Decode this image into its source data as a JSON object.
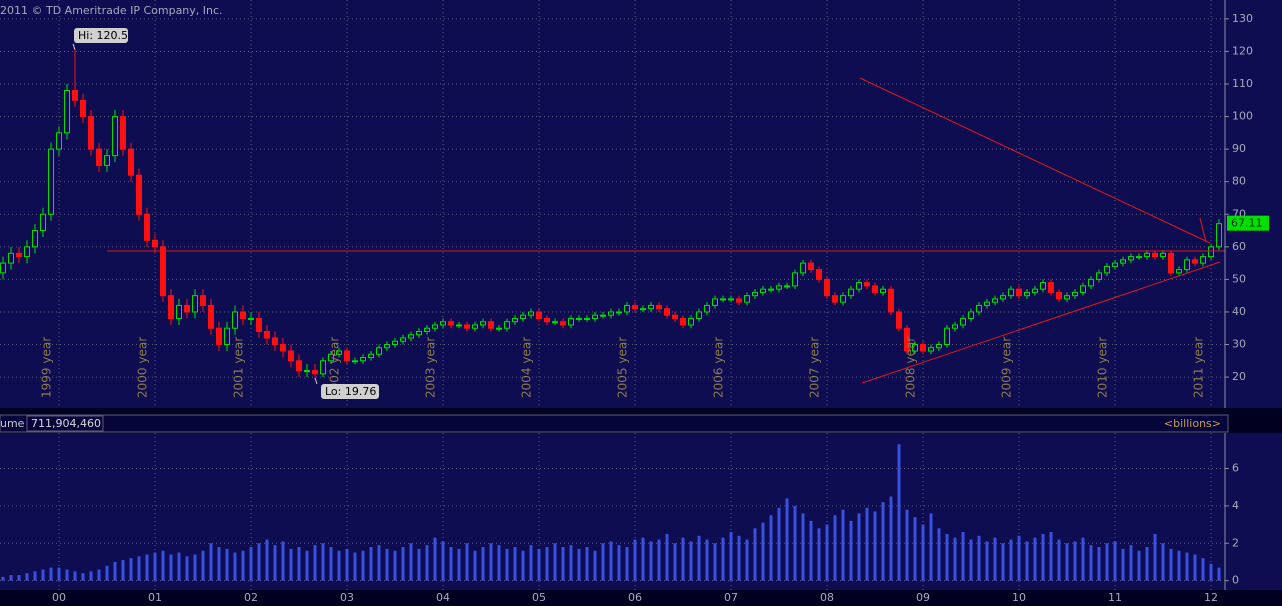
{
  "chart_data": {
    "type": "candlestick",
    "copyright": "2011 © TD Ameritrade IP Company, Inc.",
    "hi_label": "Hi: 120.5",
    "lo_label": "Lo: 19.76",
    "volume_title": "ume",
    "volume_value": "711,904,460",
    "volume_unit": "<billions>",
    "up_color": "#00e000",
    "down_color": "#ff1010",
    "volume_color": "#3a50e0",
    "grid": true,
    "open": [
      52,
      55,
      58,
      57,
      60,
      65,
      70,
      90,
      95,
      108,
      105,
      100,
      90,
      85,
      88,
      100,
      90,
      82,
      70,
      62,
      60,
      45,
      38,
      42,
      40,
      45,
      42,
      35,
      30,
      35,
      40,
      38,
      38,
      34,
      32,
      30,
      28,
      25,
      22,
      22,
      21,
      25,
      27,
      28,
      25,
      25,
      26,
      27,
      29,
      30,
      31,
      32,
      33,
      34,
      35,
      36,
      37,
      36,
      36,
      35,
      36,
      37,
      35,
      35,
      37,
      38,
      39,
      40,
      38,
      37,
      37,
      36,
      38,
      38,
      38,
      39,
      39,
      40,
      40,
      42,
      41,
      41,
      42,
      41,
      39,
      38,
      36,
      38,
      40,
      42,
      44,
      44,
      44,
      43,
      45,
      46,
      47,
      47,
      48,
      48,
      52,
      55,
      53,
      50,
      45,
      43,
      45,
      47,
      49,
      48,
      46,
      47,
      40,
      35,
      28,
      30,
      28,
      29,
      30,
      35,
      36,
      38,
      40,
      42,
      43,
      44,
      45,
      47,
      45,
      46,
      47,
      49,
      46,
      44,
      45,
      46,
      48,
      50,
      52,
      54,
      55,
      56,
      57,
      57,
      58,
      57,
      58,
      52,
      53,
      56,
      55,
      57,
      60
    ],
    "high": [
      57,
      60,
      60,
      62,
      67,
      72,
      92,
      97,
      110,
      120.5,
      107,
      102,
      92,
      90,
      102,
      102,
      92,
      84,
      72,
      64,
      62,
      47,
      44,
      44,
      47,
      47,
      44,
      37,
      37,
      42,
      42,
      40,
      40,
      36,
      34,
      32,
      30,
      27,
      24,
      24,
      26,
      28,
      29,
      29,
      26,
      27,
      28,
      30,
      31,
      32,
      33,
      34,
      35,
      36,
      37,
      38,
      38,
      37,
      37,
      37,
      38,
      38,
      36,
      38,
      39,
      40,
      41,
      41,
      39,
      38,
      38,
      39,
      39,
      39,
      40,
      40,
      41,
      41,
      43,
      43,
      42,
      43,
      43,
      42,
      40,
      39,
      39,
      41,
      43,
      45,
      45,
      45,
      45,
      46,
      47,
      48,
      48,
      49,
      49,
      53,
      56,
      56,
      54,
      51,
      46,
      46,
      48,
      50,
      50,
      49,
      48,
      48,
      41,
      36,
      31,
      31,
      30,
      31,
      36,
      37,
      39,
      41,
      43,
      44,
      45,
      46,
      48,
      48,
      47,
      48,
      50,
      50,
      47,
      46,
      47,
      49,
      51,
      53,
      55,
      56,
      57,
      58,
      58,
      59,
      59,
      59,
      59,
      54,
      57,
      57,
      58,
      61,
      68.5
    ],
    "low": [
      50,
      53,
      55,
      55,
      58,
      63,
      68,
      88,
      93,
      103,
      98,
      88,
      83,
      83,
      86,
      88,
      80,
      68,
      60,
      58,
      43,
      36,
      36,
      38,
      38,
      40,
      33,
      28,
      28,
      33,
      36,
      36,
      32,
      30,
      28,
      26,
      23,
      20,
      20,
      19.76,
      20,
      24,
      26,
      24,
      24,
      24,
      25,
      26,
      28,
      29,
      30,
      31,
      32,
      33,
      34,
      35,
      35,
      35,
      34,
      34,
      35,
      34,
      34,
      34,
      36,
      37,
      38,
      37,
      36,
      36,
      35,
      35,
      37,
      37,
      37,
      38,
      38,
      39,
      39,
      40,
      40,
      40,
      40,
      38,
      37,
      35,
      35,
      37,
      39,
      41,
      43,
      43,
      42,
      42,
      44,
      45,
      46,
      46,
      47,
      47,
      51,
      52,
      49,
      44,
      42,
      42,
      44,
      46,
      47,
      45,
      45,
      39,
      34,
      27,
      27,
      27,
      27,
      28,
      29,
      34,
      35,
      37,
      39,
      41,
      42,
      43,
      44,
      44,
      44,
      45,
      46,
      45,
      43,
      43,
      44,
      45,
      47,
      49,
      51,
      53,
      54,
      55,
      56,
      56,
      56,
      56,
      51,
      51,
      52,
      54,
      54,
      56,
      59
    ],
    "close": [
      55,
      58,
      57,
      60,
      65,
      70,
      90,
      95,
      108,
      105,
      100,
      90,
      85,
      88,
      100,
      90,
      82,
      70,
      62,
      60,
      45,
      38,
      42,
      40,
      45,
      42,
      35,
      30,
      35,
      40,
      38,
      38,
      34,
      32,
      30,
      28,
      25,
      22,
      22,
      21,
      25,
      27,
      28,
      25,
      25,
      26,
      27,
      29,
      30,
      31,
      32,
      33,
      34,
      35,
      36,
      37,
      36,
      36,
      35,
      36,
      37,
      35,
      35,
      37,
      38,
      39,
      40,
      38,
      37,
      37,
      36,
      38,
      38,
      38,
      39,
      39,
      40,
      40,
      42,
      41,
      41,
      42,
      41,
      39,
      38,
      36,
      38,
      40,
      42,
      44,
      44,
      44,
      43,
      45,
      46,
      47,
      47,
      48,
      48,
      52,
      55,
      53,
      50,
      45,
      43,
      45,
      47,
      49,
      48,
      46,
      47,
      40,
      35,
      28,
      30,
      28,
      29,
      30,
      35,
      36,
      38,
      40,
      42,
      43,
      44,
      45,
      47,
      45,
      46,
      47,
      49,
      46,
      44,
      45,
      46,
      48,
      50,
      52,
      54,
      55,
      56,
      57,
      57,
      58,
      57,
      58,
      52,
      53,
      56,
      55,
      57,
      60,
      67.11
    ],
    "volume": [
      0.2,
      0.3,
      0.3,
      0.4,
      0.5,
      0.6,
      0.7,
      0.7,
      0.6,
      0.5,
      0.4,
      0.5,
      0.6,
      0.8,
      1.0,
      1.1,
      1.2,
      1.3,
      1.4,
      1.5,
      1.6,
      1.4,
      1.5,
      1.3,
      1.4,
      1.6,
      2.0,
      1.8,
      1.7,
      1.5,
      1.6,
      1.8,
      2.0,
      2.2,
      1.9,
      2.1,
      1.7,
      1.8,
      1.6,
      1.9,
      2.0,
      1.8,
      1.6,
      1.7,
      1.5,
      1.6,
      1.8,
      1.9,
      1.7,
      1.6,
      1.8,
      2.0,
      1.7,
      1.9,
      2.3,
      2.1,
      1.8,
      1.7,
      2.0,
      1.6,
      1.8,
      2.0,
      1.9,
      1.7,
      1.8,
      1.6,
      1.9,
      1.7,
      1.8,
      2.0,
      1.8,
      1.9,
      1.7,
      1.8,
      1.6,
      2.0,
      2.1,
      1.9,
      1.8,
      2.2,
      2.3,
      2.1,
      2.2,
      2.5,
      2.0,
      2.3,
      2.1,
      2.4,
      2.2,
      2.0,
      2.3,
      2.6,
      2.4,
      2.2,
      2.8,
      3.1,
      3.5,
      3.9,
      4.4,
      4.0,
      3.6,
      3.2,
      2.8,
      3.0,
      3.5,
      3.8,
      3.2,
      3.6,
      3.9,
      3.7,
      4.2,
      4.5,
      7.3,
      3.8,
      3.4,
      3.0,
      3.6,
      2.8,
      2.5,
      2.3,
      2.6,
      2.2,
      2.4,
      2.1,
      2.3,
      2.0,
      2.2,
      2.4,
      2.1,
      2.3,
      2.5,
      2.6,
      2.2,
      2.0,
      2.1,
      2.3,
      1.9,
      1.8,
      2.0,
      2.1,
      1.7,
      1.9,
      1.6,
      1.8,
      2.5,
      2.0,
      1.7,
      1.6,
      1.5,
      1.4,
      1.2,
      0.9,
      0.7
    ],
    "ylim": [
      10.5,
      135.8
    ],
    "yticks": [
      20,
      30,
      40,
      50,
      60,
      70,
      80,
      90,
      100,
      110,
      120,
      130
    ],
    "y2lim": [
      -0.5,
      7.9
    ],
    "y2ticks": [
      0,
      2,
      4,
      6
    ],
    "xticks": [
      {
        "value": 7,
        "label": "00"
      },
      {
        "value": 19,
        "label": "01"
      },
      {
        "value": 31,
        "label": "02"
      },
      {
        "value": 43,
        "label": "03"
      },
      {
        "value": 55,
        "label": "04"
      },
      {
        "value": 67,
        "label": "05"
      },
      {
        "value": 79,
        "label": "06"
      },
      {
        "value": 91,
        "label": "07"
      },
      {
        "value": 103,
        "label": "08"
      },
      {
        "value": 115,
        "label": "09"
      },
      {
        "value": 127,
        "label": "10"
      },
      {
        "value": 139,
        "label": "11"
      },
      {
        "value": 151,
        "label": "12"
      }
    ],
    "year_labels": [
      {
        "value": 5.5,
        "label": "1999 year"
      },
      {
        "value": 17.5,
        "label": "2000 year"
      },
      {
        "value": 29.5,
        "label": "2001 year"
      },
      {
        "value": 41.5,
        "label": "2002 year"
      },
      {
        "value": 53.5,
        "label": "2003 year"
      },
      {
        "value": 65.5,
        "label": "2004 year"
      },
      {
        "value": 77.5,
        "label": "2005 year"
      },
      {
        "value": 89.5,
        "label": "2006 year"
      },
      {
        "value": 101.5,
        "label": "2007 year"
      },
      {
        "value": 113.5,
        "label": "2008 year"
      },
      {
        "value": 125.5,
        "label": "2009 year"
      },
      {
        "value": 137.5,
        "label": "2010 year"
      },
      {
        "value": 149.5,
        "label": "2011 year"
      }
    ]
  }
}
